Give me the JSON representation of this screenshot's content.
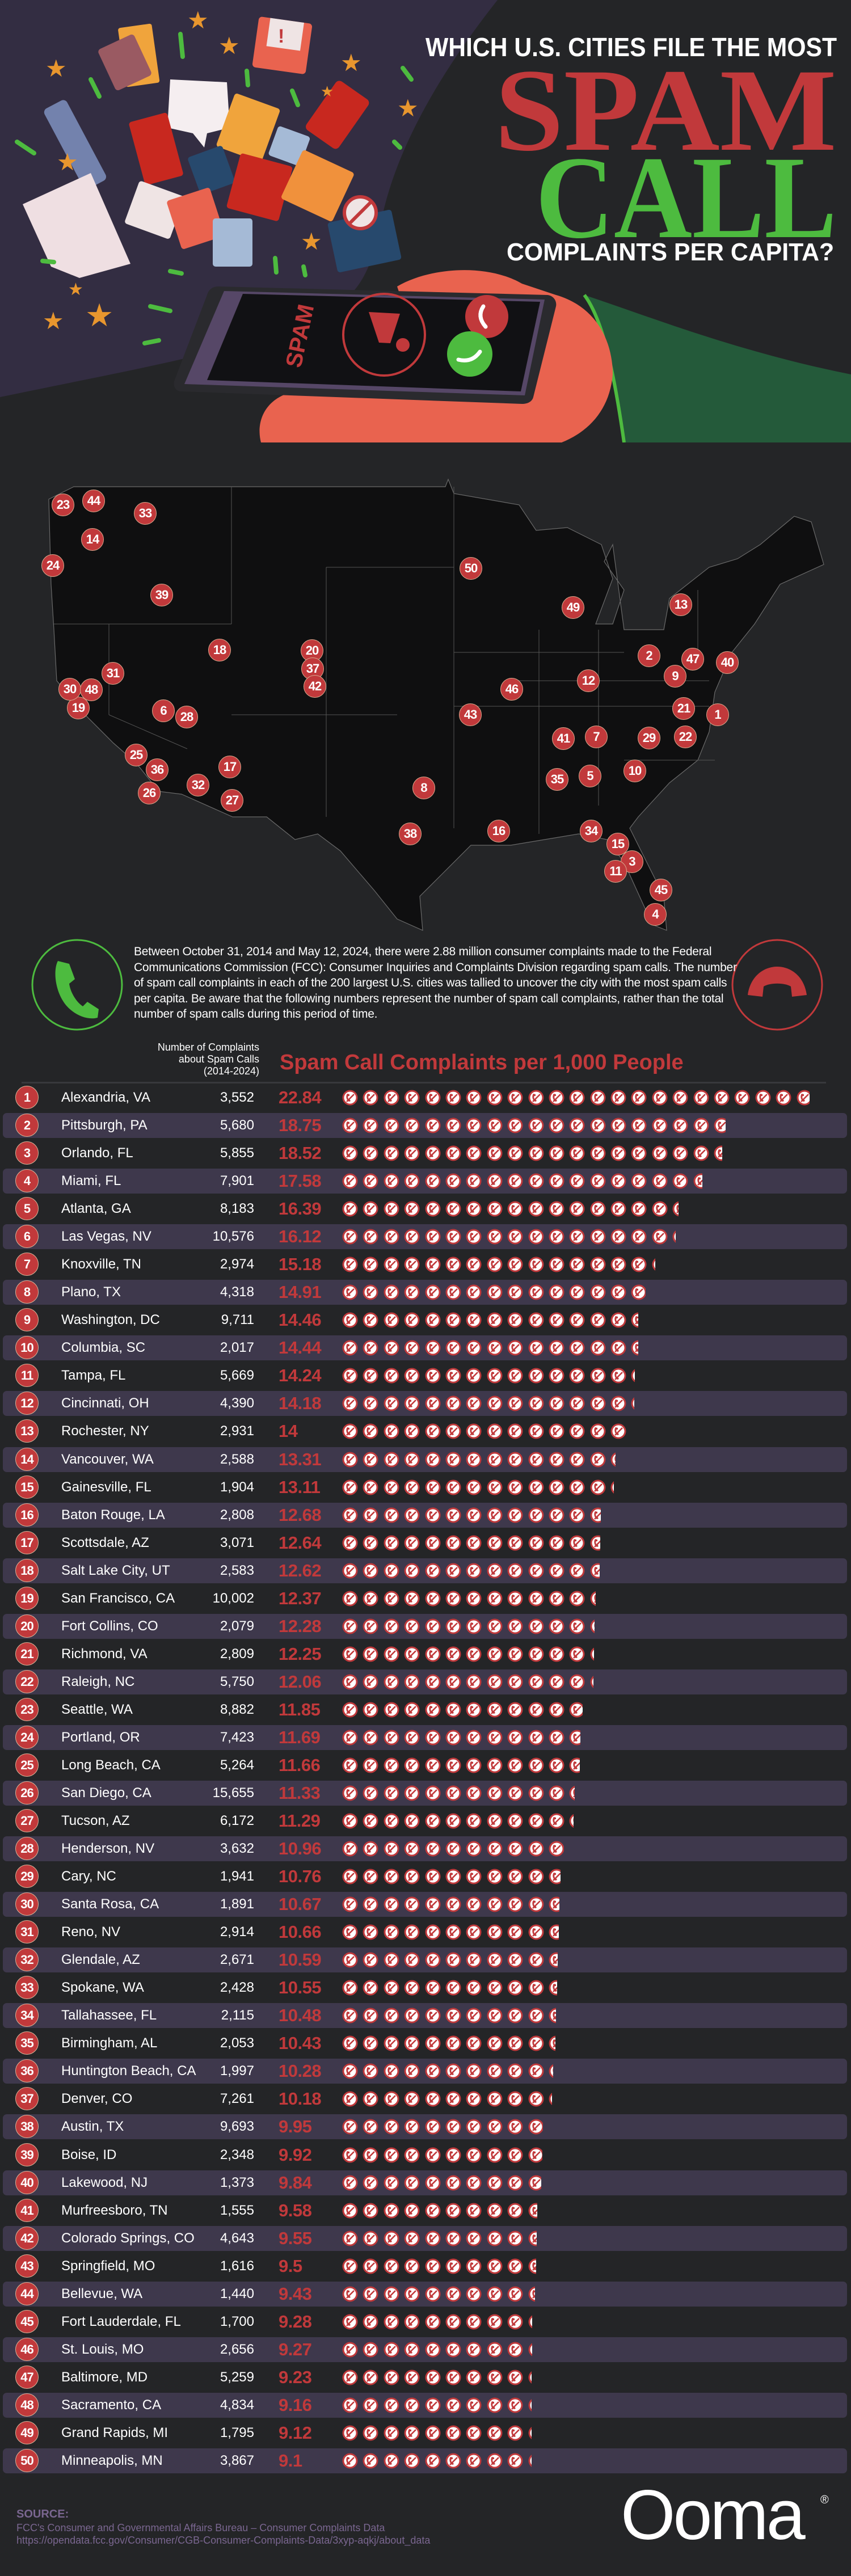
{
  "header": {
    "title_line1": "WHICH U.S. CITIES FILE THE MOST",
    "title_line2": "SPAM",
    "title_line3": "CALL",
    "title_line4": "COMPLAINTS PER CAPITA?",
    "phone_label": "SPAM"
  },
  "intro": {
    "text": "Between October 31, 2014 and May 12, 2024, there were 2.88 million consumer complaints made to the Federal Communications Commission (FCC): Consumer Inquiries and Complaints Division regarding spam calls. The number of spam call complaints in each of the 200 largest U.S. cities was tallied to uncover the city with the most spam calls per capita. Be aware that the following numbers represent the number of spam call complaints, rather than the total number of spam calls during this period of time."
  },
  "colors": {
    "background": "#242527",
    "red": "#c1393b",
    "green": "#4dbb3f",
    "stripe": "#3e384c",
    "source": "#7a6690"
  },
  "chart_data": {
    "type": "bar",
    "title": "Spam Call Complaints per 1,000 People",
    "secondary_label": [
      "Number of Complaints",
      "about Spam Calls",
      "(2014-2024)"
    ],
    "ranks": [
      "1",
      "2",
      "3",
      "4",
      "5",
      "6",
      "7",
      "8",
      "9",
      "10",
      "11",
      "12",
      "13",
      "14",
      "15",
      "16",
      "17",
      "18",
      "19",
      "20",
      "21",
      "22",
      "23",
      "24",
      "25",
      "26",
      "27",
      "28",
      "29",
      "30",
      "31",
      "32",
      "33",
      "34",
      "35",
      "36",
      "37",
      "38",
      "39",
      "40",
      "41",
      "42",
      "43",
      "44",
      "45",
      "46",
      "47",
      "48",
      "49",
      "50"
    ],
    "categories": [
      "Alexandria, VA",
      "Pittsburgh, PA",
      "Orlando, FL",
      "Miami, FL",
      "Atlanta, GA",
      "Las Vegas, NV",
      "Knoxville, TN",
      "Plano, TX",
      "Washington, DC",
      "Columbia, SC",
      "Tampa, FL",
      "Cincinnati, OH",
      "Rochester, NY",
      "Vancouver, WA",
      "Gainesville, FL",
      "Baton Rouge, LA",
      "Scottsdale, AZ",
      "Salt Lake City, UT",
      "San Francisco, CA",
      "Fort Collins, CO",
      "Richmond, VA",
      "Raleigh, NC",
      "Seattle, WA",
      "Portland, OR",
      "Long Beach, CA",
      "San Diego, CA",
      "Tucson, AZ",
      "Henderson, NV",
      "Cary, NC",
      "Santa Rosa, CA",
      "Reno, NV",
      "Glendale, AZ",
      "Spokane, WA",
      "Tallahassee, FL",
      "Birmingham, AL",
      "Huntington Beach, CA",
      "Denver, CO",
      "Austin, TX",
      "Boise, ID",
      "Lakewood, NJ",
      "Murfreesboro, TN",
      "Colorado Springs, CO",
      "Springfield, MO",
      "Bellevue, WA",
      "Fort Lauderdale, FL",
      "St. Louis, MO",
      "Baltimore, MD",
      "Sacramento, CA",
      "Grand Rapids, MI",
      "Minneapolis, MN"
    ],
    "complaints": [
      "3,552",
      "5,680",
      "5,855",
      "7,901",
      "8,183",
      "10,576",
      "2,974",
      "4,318",
      "9,711",
      "2,017",
      "5,669",
      "4,390",
      "2,931",
      "2,588",
      "1,904",
      "2,808",
      "3,071",
      "2,583",
      "10,002",
      "2,079",
      "2,809",
      "5,750",
      "8,882",
      "7,423",
      "5,264",
      "15,655",
      "6,172",
      "3,632",
      "1,941",
      "1,891",
      "2,914",
      "2,671",
      "2,428",
      "2,115",
      "2,053",
      "1,997",
      "7,261",
      "9,693",
      "2,348",
      "1,373",
      "1,555",
      "4,643",
      "1,616",
      "1,440",
      "1,700",
      "2,656",
      "5,259",
      "4,834",
      "1,795",
      "3,867"
    ],
    "values": [
      "22.84",
      "18.75",
      "18.52",
      "17.58",
      "16.39",
      "16.12",
      "15.18",
      "14.91",
      "14.46",
      "14.44",
      "14.24",
      "14.18",
      "14",
      "13.31",
      "13.11",
      "12.68",
      "12.64",
      "12.62",
      "12.37",
      "12.28",
      "12.25",
      "12.06",
      "11.85",
      "11.69",
      "11.66",
      "11.33",
      "11.29",
      "10.96",
      "10.76",
      "10.67",
      "10.66",
      "10.59",
      "10.55",
      "10.48",
      "10.43",
      "10.28",
      "10.18",
      "9.95",
      "9.92",
      "9.84",
      "9.58",
      "9.55",
      "9.5",
      "9.43",
      "9.28",
      "9.27",
      "9.23",
      "9.16",
      "9.12",
      "9.1"
    ],
    "icon": "spam-call-blocked-icon",
    "icon_unit": "1 complaint per 1,000 people"
  },
  "footer": {
    "source_heading": "SOURCE:",
    "source_line1": "FCC's Consumer and Governmental Affairs Bureau – Consumer Complaints Data",
    "source_line2": "https://opendata.fcc.gov/Consumer/CGB-Consumer-Complaints-Data/3xyp-aqkj/about_data",
    "logo": "Ooma",
    "logo_mark": "®"
  }
}
